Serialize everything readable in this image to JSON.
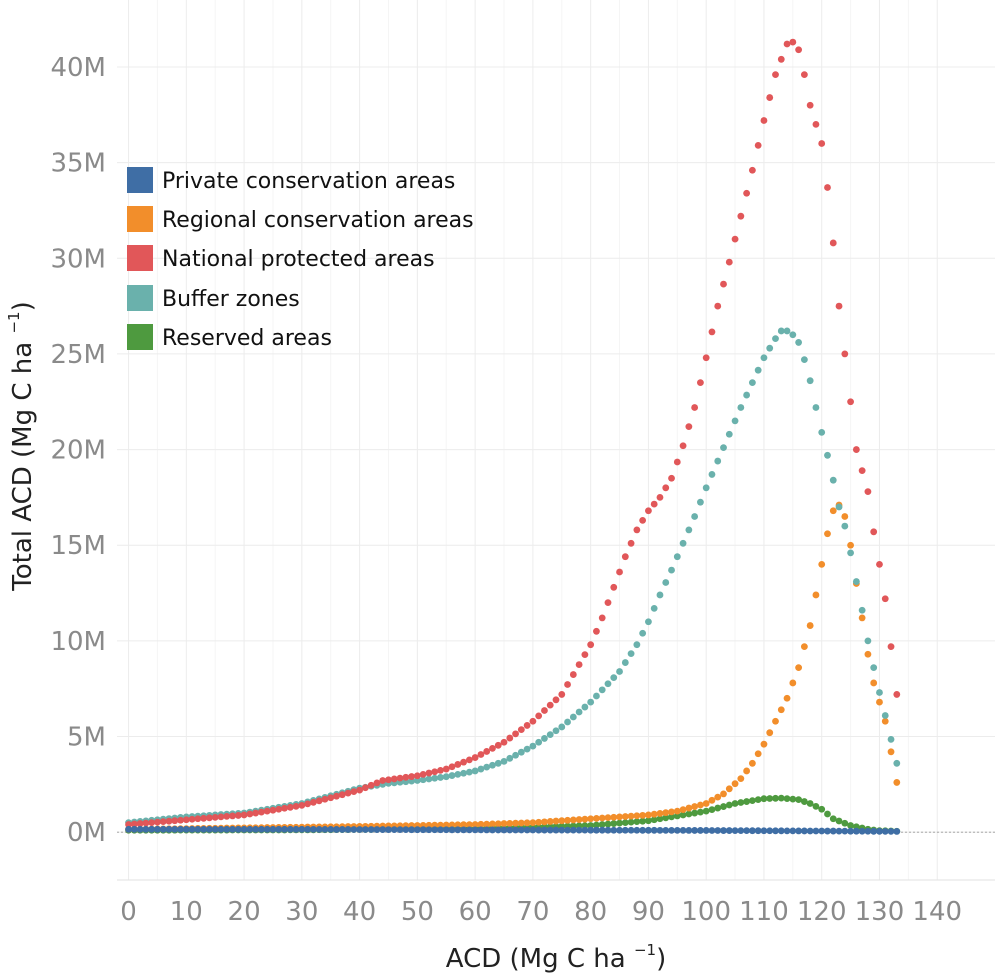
{
  "chart_data": {
    "type": "scatter",
    "title": "",
    "xlabel": "ACD (Mg C ha",
    "xlabel_sup": "−1",
    "xlabel_close": ")",
    "ylabel": "Total ACD (Mg C ha",
    "ylabel_sup": "−1",
    "ylabel_close": ")",
    "xlim": [
      -2,
      150
    ],
    "ylim": [
      -2500000,
      43500000
    ],
    "x_ticks": [
      0,
      10,
      20,
      30,
      40,
      50,
      60,
      70,
      80,
      90,
      100,
      110,
      120,
      130,
      140
    ],
    "x_tick_labels": [
      "0",
      "10",
      "20",
      "30",
      "40",
      "50",
      "60",
      "70",
      "80",
      "90",
      "100",
      "110",
      "120",
      "130",
      "140"
    ],
    "y_ticks": [
      0,
      5000000,
      10000000,
      15000000,
      20000000,
      25000000,
      30000000,
      35000000,
      40000000
    ],
    "y_tick_labels": [
      "0M",
      "5M",
      "10M",
      "15M",
      "20M",
      "25M",
      "30M",
      "35M",
      "40M"
    ],
    "grid": true,
    "legend_position": "upper-left",
    "x_step": 1,
    "series": [
      {
        "name": "Private conservation areas",
        "color": "#3f6ea5",
        "x": [
          0,
          133
        ],
        "keypoints": [
          [
            0,
            150000
          ],
          [
            30,
            150000
          ],
          [
            60,
            120000
          ],
          [
            100,
            90000
          ],
          [
            120,
            60000
          ],
          [
            133,
            40000
          ]
        ]
      },
      {
        "name": "Regional conservation areas",
        "color": "#f28e2b",
        "x": [
          0,
          133
        ],
        "keypoints": [
          [
            0,
            150000
          ],
          [
            40,
            300000
          ],
          [
            60,
            400000
          ],
          [
            70,
            500000
          ],
          [
            80,
            700000
          ],
          [
            90,
            900000
          ],
          [
            95,
            1100000
          ],
          [
            100,
            1500000
          ],
          [
            103,
            2000000
          ],
          [
            106,
            2800000
          ],
          [
            108,
            3600000
          ],
          [
            110,
            4600000
          ],
          [
            112,
            5800000
          ],
          [
            114,
            7000000
          ],
          [
            116,
            8600000
          ],
          [
            118,
            10800000
          ],
          [
            120,
            14000000
          ],
          [
            121,
            15600000
          ],
          [
            122,
            16800000
          ],
          [
            123,
            17100000
          ],
          [
            124,
            16500000
          ],
          [
            125,
            15000000
          ],
          [
            126,
            13000000
          ],
          [
            127,
            11200000
          ],
          [
            128,
            9300000
          ],
          [
            129,
            7800000
          ],
          [
            130,
            6800000
          ],
          [
            131,
            5800000
          ],
          [
            133,
            2600000
          ]
        ]
      },
      {
        "name": "National protected areas",
        "color": "#e15759",
        "x": [
          0,
          133
        ],
        "keypoints": [
          [
            0,
            400000
          ],
          [
            10,
            650000
          ],
          [
            20,
            900000
          ],
          [
            30,
            1400000
          ],
          [
            40,
            2200000
          ],
          [
            44,
            2700000
          ],
          [
            50,
            2950000
          ],
          [
            55,
            3300000
          ],
          [
            60,
            3900000
          ],
          [
            65,
            4700000
          ],
          [
            70,
            5800000
          ],
          [
            75,
            7200000
          ],
          [
            80,
            9800000
          ],
          [
            82,
            11200000
          ],
          [
            84,
            12800000
          ],
          [
            86,
            14400000
          ],
          [
            88,
            15800000
          ],
          [
            90,
            16800000
          ],
          [
            92,
            17500000
          ],
          [
            94,
            18500000
          ],
          [
            96,
            20200000
          ],
          [
            98,
            22200000
          ],
          [
            100,
            24800000
          ],
          [
            102,
            27500000
          ],
          [
            104,
            29800000
          ],
          [
            106,
            32200000
          ],
          [
            108,
            34600000
          ],
          [
            110,
            37200000
          ],
          [
            112,
            39600000
          ],
          [
            114,
            41200000
          ],
          [
            115,
            41300000
          ],
          [
            116,
            40900000
          ],
          [
            117,
            39600000
          ],
          [
            118,
            38000000
          ],
          [
            120,
            36000000
          ],
          [
            121,
            33700000
          ],
          [
            122,
            30800000
          ],
          [
            123,
            27500000
          ],
          [
            124,
            25000000
          ],
          [
            125,
            22500000
          ],
          [
            126,
            20000000
          ],
          [
            128,
            17800000
          ],
          [
            129,
            15700000
          ],
          [
            130,
            14000000
          ],
          [
            131,
            12200000
          ],
          [
            133,
            7200000
          ]
        ]
      },
      {
        "name": "Buffer zones",
        "color": "#6ab1ac",
        "x": [
          0,
          133
        ],
        "keypoints": [
          [
            0,
            500000
          ],
          [
            10,
            800000
          ],
          [
            20,
            1000000
          ],
          [
            30,
            1500000
          ],
          [
            40,
            2300000
          ],
          [
            45,
            2550000
          ],
          [
            50,
            2700000
          ],
          [
            55,
            2900000
          ],
          [
            60,
            3200000
          ],
          [
            65,
            3700000
          ],
          [
            70,
            4500000
          ],
          [
            75,
            5500000
          ],
          [
            80,
            6800000
          ],
          [
            85,
            8400000
          ],
          [
            88,
            9800000
          ],
          [
            90,
            11000000
          ],
          [
            92,
            12400000
          ],
          [
            94,
            13700000
          ],
          [
            96,
            15100000
          ],
          [
            98,
            16500000
          ],
          [
            100,
            18000000
          ],
          [
            102,
            19400000
          ],
          [
            104,
            20800000
          ],
          [
            106,
            22200000
          ],
          [
            108,
            23500000
          ],
          [
            110,
            24800000
          ],
          [
            112,
            25800000
          ],
          [
            113,
            26200000
          ],
          [
            114,
            26200000
          ],
          [
            115,
            26000000
          ],
          [
            116,
            25600000
          ],
          [
            117,
            24700000
          ],
          [
            118,
            23600000
          ],
          [
            119,
            22200000
          ],
          [
            120,
            20900000
          ],
          [
            121,
            19700000
          ],
          [
            122,
            18400000
          ],
          [
            123,
            17000000
          ],
          [
            124,
            16000000
          ],
          [
            125,
            14600000
          ],
          [
            126,
            13100000
          ],
          [
            127,
            11600000
          ],
          [
            128,
            10000000
          ],
          [
            129,
            8600000
          ],
          [
            130,
            7300000
          ],
          [
            131,
            6100000
          ],
          [
            133,
            3600000
          ]
        ]
      },
      {
        "name": "Reserved areas",
        "color": "#4e9a3f",
        "x": [
          0,
          133
        ],
        "keypoints": [
          [
            0,
            100000
          ],
          [
            30,
            120000
          ],
          [
            60,
            180000
          ],
          [
            80,
            350000
          ],
          [
            90,
            600000
          ],
          [
            100,
            1100000
          ],
          [
            105,
            1500000
          ],
          [
            110,
            1750000
          ],
          [
            113,
            1780000
          ],
          [
            116,
            1700000
          ],
          [
            118,
            1500000
          ],
          [
            120,
            1200000
          ],
          [
            122,
            700000
          ],
          [
            125,
            350000
          ],
          [
            128,
            150000
          ],
          [
            130,
            80000
          ],
          [
            133,
            50000
          ]
        ]
      }
    ]
  }
}
